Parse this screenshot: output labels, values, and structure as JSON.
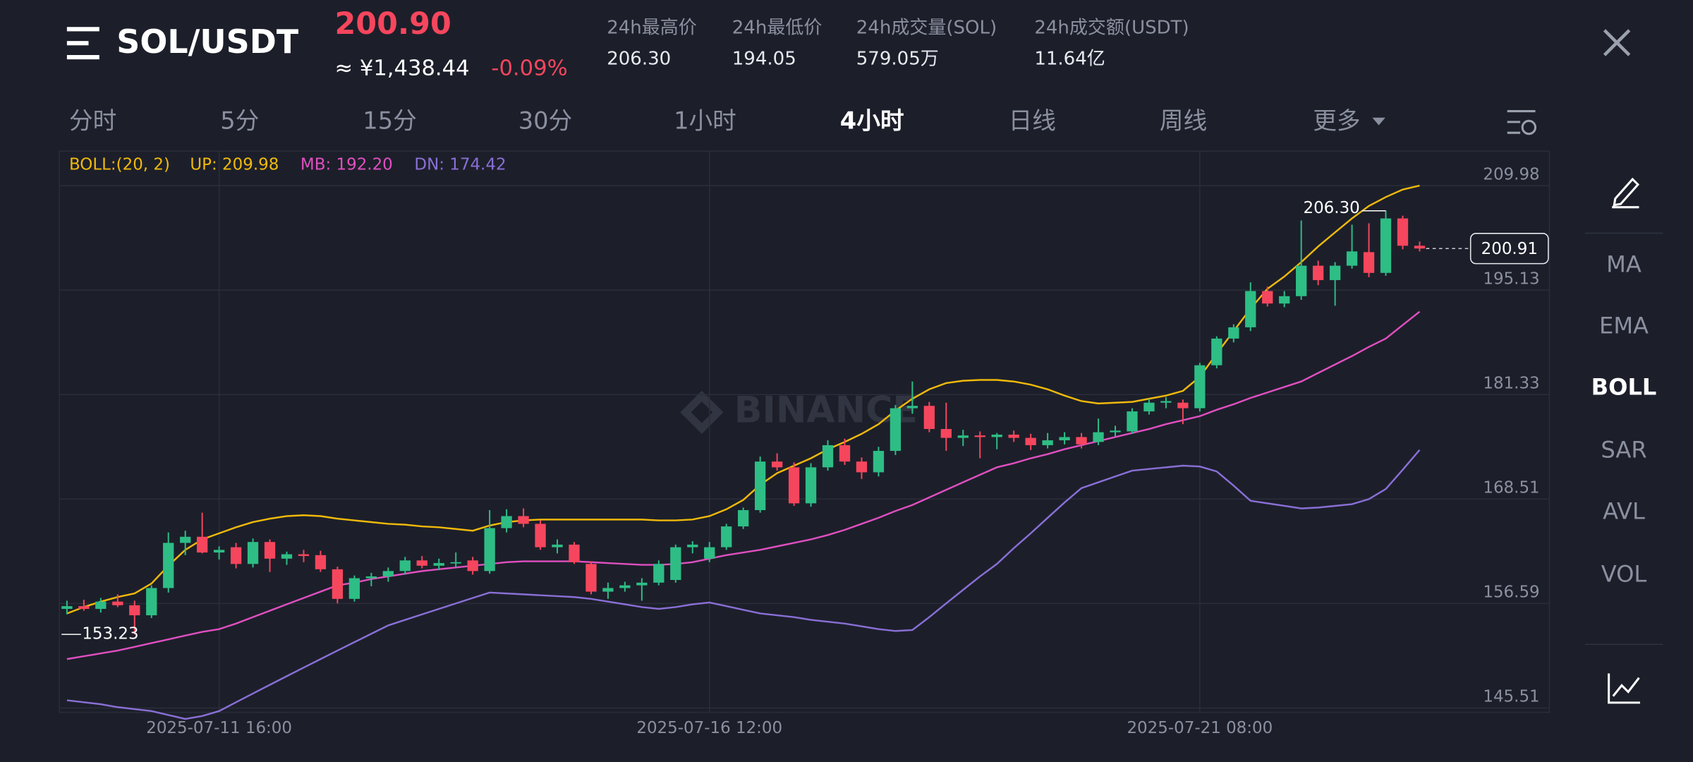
{
  "header": {
    "pair": "SOL/USDT",
    "price": "200.90",
    "price_cny": "≈ ¥1,438.44",
    "change": "-0.09%",
    "stats": [
      {
        "label": "24h最高价",
        "value": "206.30"
      },
      {
        "label": "24h最低价",
        "value": "194.05"
      },
      {
        "label": "24h成交量(SOL)",
        "value": "579.05万"
      },
      {
        "label": "24h成交额(USDT)",
        "value": "11.64亿"
      }
    ]
  },
  "tabs": {
    "items": [
      "分时",
      "5分",
      "15分",
      "30分",
      "1小时",
      "4小时",
      "日线",
      "周线",
      "更多"
    ],
    "active_index": 5
  },
  "sidebar": {
    "items": [
      "MA",
      "EMA",
      "BOLL",
      "SAR",
      "AVL",
      "VOL"
    ],
    "active_index": 2
  },
  "watermark": "BINANCE",
  "chart_data": {
    "type": "candlestick",
    "indicator": "BOLL:(20, 2)",
    "log_scale": true,
    "grid": true,
    "ylim": [
      145.07,
      215.13
    ],
    "yticks": [
      {
        "value": 145.51,
        "label": "145.51"
      },
      {
        "value": 156.59,
        "label": "156.59"
      },
      {
        "value": 168.51,
        "label": "168.51"
      },
      181.33,
      195.13,
      209.98
    ],
    "categories": [
      null,
      null,
      null,
      null,
      null,
      null,
      null,
      null,
      null,
      "2025-07-11 16:00",
      null,
      null,
      null,
      null,
      null,
      null,
      null,
      null,
      null,
      null,
      null,
      null,
      null,
      null,
      null,
      null,
      null,
      null,
      null,
      null,
      null,
      null,
      null,
      null,
      null,
      null,
      null,
      null,
      "2025-07-16 12:00",
      null,
      null,
      null,
      null,
      null,
      null,
      null,
      null,
      null,
      null,
      null,
      null,
      null,
      null,
      null,
      null,
      null,
      null,
      null,
      null,
      null,
      null,
      null,
      null,
      null,
      null,
      null,
      null,
      "2025-07-21 08:00",
      null,
      null,
      null,
      null,
      null,
      null,
      null,
      null,
      null,
      null,
      null,
      null,
      null
    ],
    "up_color": "#2ebd85",
    "down_color": "#f6465d",
    "open": [
      156.0,
      156.3,
      156.0,
      156.8,
      156.4,
      155.3,
      158.3,
      163.4,
      164.1,
      162.3,
      162.9,
      161.0,
      163.5,
      161.6,
      162.1,
      162.0,
      160.4,
      157.1,
      159.4,
      159.6,
      160.2,
      161.4,
      160.8,
      161.1,
      161.4,
      160.2,
      165.1,
      166.5,
      165.6,
      162.9,
      163.2,
      161.0,
      157.9,
      158.3,
      158.6,
      158.9,
      159.2,
      162.9,
      161.6,
      162.9,
      165.3,
      167.2,
      173.0,
      172.3,
      168.0,
      172.3,
      175.0,
      173.0,
      171.7,
      174.3,
      179.6,
      179.9,
      177.0,
      175.9,
      176.2,
      176.0,
      176.3,
      175.9,
      175.0,
      175.6,
      176.0,
      175.4,
      176.6,
      176.7,
      179.2,
      180.3,
      180.3,
      179.6,
      185.1,
      188.6,
      190.1,
      195.0,
      193.3,
      194.3,
      198.5,
      196.5,
      198.5,
      200.4,
      197.5,
      205.2,
      201.3
    ],
    "high": [
      156.9,
      157.0,
      157.2,
      157.6,
      156.9,
      158.6,
      164.6,
      164.8,
      166.9,
      163.0,
      163.4,
      163.9,
      163.8,
      162.4,
      162.6,
      162.5,
      160.7,
      159.7,
      160.0,
      160.6,
      161.8,
      161.9,
      161.6,
      162.3,
      161.8,
      167.2,
      167.3,
      167.4,
      166.0,
      163.8,
      163.5,
      161.3,
      158.9,
      159.0,
      159.4,
      161.4,
      163.2,
      163.6,
      163.5,
      165.6,
      167.5,
      173.6,
      174.0,
      172.9,
      172.8,
      175.6,
      175.8,
      173.5,
      174.8,
      180.0,
      183.0,
      180.4,
      180.3,
      176.9,
      176.7,
      176.5,
      176.8,
      176.4,
      176.5,
      176.6,
      176.5,
      178.3,
      177.4,
      179.6,
      180.8,
      181.0,
      180.7,
      185.4,
      188.9,
      190.5,
      196.2,
      195.6,
      195.0,
      204.9,
      199.2,
      199.0,
      204.3,
      204.5,
      206.3,
      205.6,
      201.9
    ],
    "low": [
      155.4,
      155.8,
      155.6,
      156.2,
      153.23,
      155.0,
      157.8,
      162.0,
      162.2,
      161.5,
      160.5,
      160.6,
      160.1,
      160.9,
      161.2,
      160.1,
      156.6,
      156.8,
      158.5,
      159.0,
      159.8,
      160.5,
      160.3,
      160.6,
      159.8,
      159.9,
      164.6,
      165.2,
      162.6,
      162.2,
      161.0,
      157.6,
      157.1,
      157.9,
      156.9,
      158.6,
      158.9,
      162.2,
      161.2,
      162.6,
      165.0,
      166.9,
      171.9,
      167.7,
      167.6,
      171.9,
      172.6,
      170.9,
      171.2,
      173.8,
      178.9,
      176.6,
      174.3,
      174.9,
      173.4,
      174.5,
      175.4,
      174.4,
      174.6,
      175.1,
      174.6,
      175.0,
      176.1,
      176.4,
      178.8,
      179.6,
      177.6,
      179.2,
      184.7,
      188.1,
      189.6,
      192.9,
      192.8,
      193.8,
      195.8,
      193.0,
      198.1,
      196.9,
      197.1,
      200.8,
      200.5
    ],
    "close": [
      156.3,
      156.0,
      156.8,
      156.4,
      155.3,
      158.3,
      163.4,
      164.1,
      162.3,
      162.6,
      161.0,
      163.5,
      161.6,
      162.1,
      161.9,
      160.4,
      157.1,
      159.4,
      159.6,
      160.2,
      161.4,
      160.8,
      161.1,
      161.2,
      160.2,
      165.1,
      166.5,
      165.6,
      162.9,
      163.2,
      161.2,
      157.9,
      158.3,
      158.6,
      158.9,
      161.0,
      162.9,
      163.2,
      162.9,
      165.3,
      167.2,
      173.0,
      172.3,
      168.0,
      172.3,
      175.0,
      173.0,
      171.7,
      174.3,
      179.6,
      179.9,
      177.0,
      175.9,
      176.2,
      176.0,
      176.3,
      175.9,
      175.0,
      175.6,
      176.0,
      175.1,
      176.6,
      176.8,
      179.2,
      180.3,
      180.5,
      179.6,
      185.1,
      188.6,
      190.1,
      195.0,
      193.3,
      194.3,
      198.5,
      196.5,
      198.5,
      200.5,
      197.5,
      205.2,
      201.3,
      200.91
    ],
    "series": [
      {
        "name": "UP: 209.98",
        "color": "#f0b90b",
        "values": [
          155.5,
          156.2,
          156.8,
          157.3,
          157.7,
          158.8,
          160.8,
          162.6,
          163.8,
          164.5,
          165.2,
          165.8,
          166.2,
          166.5,
          166.6,
          166.5,
          166.2,
          166.0,
          165.8,
          165.6,
          165.5,
          165.3,
          165.2,
          165.0,
          164.8,
          165.4,
          165.8,
          166.0,
          166.1,
          166.1,
          166.1,
          166.1,
          166.1,
          166.1,
          166.1,
          166.0,
          166.0,
          166.1,
          166.5,
          167.3,
          168.4,
          170.2,
          171.6,
          172.5,
          173.4,
          174.5,
          175.4,
          176.4,
          177.6,
          179.3,
          180.8,
          182.0,
          182.8,
          183.1,
          183.2,
          183.2,
          183.0,
          182.6,
          182.0,
          181.2,
          180.5,
          180.2,
          180.3,
          180.4,
          180.8,
          181.2,
          181.8,
          183.6,
          186.6,
          189.6,
          192.6,
          195.3,
          197.0,
          199.0,
          201.2,
          203.2,
          205.2,
          207.0,
          208.3,
          209.4,
          209.98
        ]
      },
      {
        "name": "MB: 192.20",
        "color": "#e04fc0",
        "values": [
          150.6,
          150.9,
          151.2,
          151.5,
          151.9,
          152.3,
          152.7,
          153.1,
          153.5,
          153.8,
          154.4,
          155.1,
          155.8,
          156.5,
          157.2,
          157.9,
          158.6,
          158.9,
          159.3,
          159.6,
          159.9,
          160.2,
          160.4,
          160.6,
          160.8,
          161.0,
          161.2,
          161.3,
          161.3,
          161.3,
          161.3,
          161.2,
          161.1,
          161.0,
          160.9,
          160.9,
          161.0,
          161.2,
          161.6,
          162.0,
          162.3,
          162.6,
          163.0,
          163.4,
          163.8,
          164.3,
          164.9,
          165.6,
          166.3,
          167.1,
          167.8,
          168.7,
          169.6,
          170.5,
          171.4,
          172.3,
          172.8,
          173.4,
          173.9,
          174.5,
          175.0,
          175.5,
          176.0,
          176.5,
          177.0,
          177.6,
          178.1,
          178.6,
          179.4,
          180.1,
          180.9,
          181.6,
          182.3,
          183.0,
          184.1,
          185.2,
          186.3,
          187.5,
          188.6,
          190.4,
          192.2
        ]
      },
      {
        "name": "DN: 174.42",
        "color": "#8a6fd6",
        "values": [
          146.3,
          146.1,
          145.9,
          145.6,
          145.4,
          145.2,
          144.8,
          144.4,
          144.7,
          145.2,
          146.1,
          147.0,
          147.9,
          148.8,
          149.7,
          150.6,
          151.5,
          152.4,
          153.3,
          154.2,
          154.8,
          155.4,
          156.0,
          156.6,
          157.2,
          157.8,
          157.7,
          157.6,
          157.5,
          157.4,
          157.3,
          157.1,
          156.8,
          156.5,
          156.2,
          156.0,
          156.2,
          156.5,
          156.7,
          156.3,
          155.9,
          155.5,
          155.3,
          155.1,
          154.8,
          154.6,
          154.4,
          154.1,
          153.8,
          153.6,
          153.7,
          155.1,
          156.6,
          158.1,
          159.6,
          161.0,
          162.8,
          164.5,
          166.3,
          168.1,
          169.8,
          170.5,
          171.2,
          171.9,
          172.1,
          172.3,
          172.5,
          172.4,
          171.8,
          170.1,
          168.3,
          168.0,
          167.7,
          167.4,
          167.5,
          167.7,
          167.9,
          168.5,
          169.7,
          172.0,
          174.42
        ]
      }
    ],
    "annotations": [
      {
        "kind": "high",
        "index": 78,
        "value": 206.3,
        "label": "206.30"
      },
      {
        "kind": "low",
        "index": 4,
        "value": 153.23,
        "label": "153.23"
      },
      {
        "kind": "last",
        "index": 80,
        "value": 200.91,
        "label": "200.91"
      }
    ]
  }
}
